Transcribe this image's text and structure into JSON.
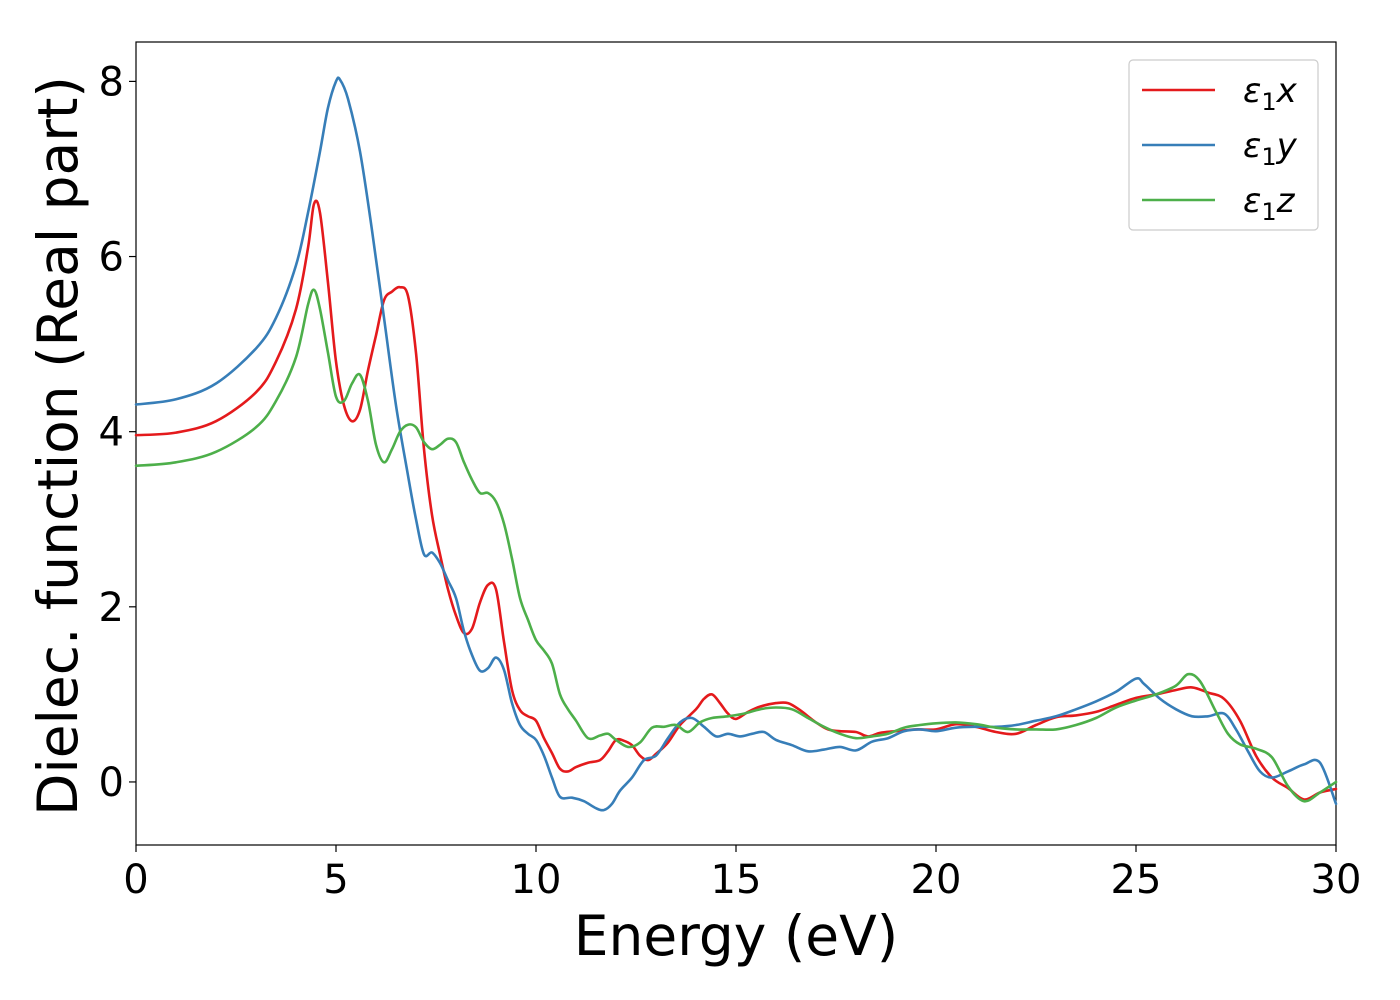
{
  "chart_data": {
    "type": "line",
    "xlabel": "Energy (eV)",
    "ylabel": "Dielec. function (Real part)",
    "xlim": [
      0,
      30
    ],
    "ylim": [
      -0.72,
      8.45
    ],
    "xticks": [
      0,
      5,
      10,
      15,
      20,
      25,
      30
    ],
    "yticks": [
      0,
      2,
      4,
      6,
      8
    ],
    "grid": false,
    "legend_position": "top-right",
    "series": [
      {
        "name": "ε₁x",
        "legend_main": "ε",
        "legend_sub": "1",
        "legend_tail": "x",
        "color": "#e41a1c",
        "points": [
          [
            0,
            3.96
          ],
          [
            1,
            3.99
          ],
          [
            2,
            4.12
          ],
          [
            3,
            4.45
          ],
          [
            3.5,
            4.8
          ],
          [
            4,
            5.4
          ],
          [
            4.3,
            6.1
          ],
          [
            4.45,
            6.6
          ],
          [
            4.6,
            6.5
          ],
          [
            4.8,
            5.7
          ],
          [
            5,
            4.8
          ],
          [
            5.2,
            4.3
          ],
          [
            5.4,
            4.12
          ],
          [
            5.6,
            4.25
          ],
          [
            5.8,
            4.7
          ],
          [
            6,
            5.1
          ],
          [
            6.2,
            5.5
          ],
          [
            6.4,
            5.6
          ],
          [
            6.6,
            5.65
          ],
          [
            6.8,
            5.55
          ],
          [
            7,
            4.9
          ],
          [
            7.2,
            3.8
          ],
          [
            7.4,
            3.05
          ],
          [
            7.6,
            2.6
          ],
          [
            7.8,
            2.2
          ],
          [
            8,
            1.9
          ],
          [
            8.2,
            1.7
          ],
          [
            8.4,
            1.75
          ],
          [
            8.6,
            2.05
          ],
          [
            8.8,
            2.25
          ],
          [
            9,
            2.2
          ],
          [
            9.2,
            1.6
          ],
          [
            9.4,
            1.05
          ],
          [
            9.6,
            0.82
          ],
          [
            9.8,
            0.75
          ],
          [
            10,
            0.7
          ],
          [
            10.2,
            0.5
          ],
          [
            10.4,
            0.33
          ],
          [
            10.6,
            0.15
          ],
          [
            10.8,
            0.12
          ],
          [
            11,
            0.17
          ],
          [
            11.3,
            0.22
          ],
          [
            11.6,
            0.25
          ],
          [
            11.8,
            0.35
          ],
          [
            12,
            0.48
          ],
          [
            12.2,
            0.47
          ],
          [
            12.4,
            0.42
          ],
          [
            12.6,
            0.3
          ],
          [
            12.8,
            0.25
          ],
          [
            13,
            0.32
          ],
          [
            13.3,
            0.45
          ],
          [
            13.6,
            0.65
          ],
          [
            14,
            0.83
          ],
          [
            14.2,
            0.95
          ],
          [
            14.4,
            1.0
          ],
          [
            14.6,
            0.9
          ],
          [
            14.8,
            0.78
          ],
          [
            15,
            0.72
          ],
          [
            15.3,
            0.8
          ],
          [
            15.6,
            0.86
          ],
          [
            16,
            0.9
          ],
          [
            16.3,
            0.9
          ],
          [
            16.6,
            0.82
          ],
          [
            17,
            0.68
          ],
          [
            17.3,
            0.6
          ],
          [
            17.6,
            0.58
          ],
          [
            18,
            0.57
          ],
          [
            18.3,
            0.52
          ],
          [
            18.6,
            0.56
          ],
          [
            19,
            0.58
          ],
          [
            19.5,
            0.6
          ],
          [
            20,
            0.6
          ],
          [
            20.5,
            0.66
          ],
          [
            21,
            0.63
          ],
          [
            21.5,
            0.57
          ],
          [
            22,
            0.55
          ],
          [
            22.5,
            0.65
          ],
          [
            23,
            0.74
          ],
          [
            23.5,
            0.76
          ],
          [
            24,
            0.8
          ],
          [
            24.5,
            0.88
          ],
          [
            25,
            0.96
          ],
          [
            25.5,
            1.0
          ],
          [
            26,
            1.05
          ],
          [
            26.4,
            1.08
          ],
          [
            26.8,
            1.02
          ],
          [
            27.2,
            0.95
          ],
          [
            27.6,
            0.7
          ],
          [
            28,
            0.3
          ],
          [
            28.4,
            0.05
          ],
          [
            28.8,
            -0.07
          ],
          [
            29.2,
            -0.2
          ],
          [
            29.6,
            -0.12
          ],
          [
            30,
            -0.08
          ]
        ]
      },
      {
        "name": "ε₁y",
        "legend_main": "ε",
        "legend_sub": "1",
        "legend_tail": "y",
        "color": "#377eb8",
        "points": [
          [
            0,
            4.31
          ],
          [
            1,
            4.37
          ],
          [
            2,
            4.55
          ],
          [
            3,
            4.95
          ],
          [
            3.5,
            5.3
          ],
          [
            4,
            5.9
          ],
          [
            4.3,
            6.5
          ],
          [
            4.6,
            7.2
          ],
          [
            4.8,
            7.7
          ],
          [
            5,
            8.0
          ],
          [
            5.1,
            8.02
          ],
          [
            5.3,
            7.8
          ],
          [
            5.6,
            7.2
          ],
          [
            5.9,
            6.3
          ],
          [
            6.2,
            5.3
          ],
          [
            6.5,
            4.3
          ],
          [
            6.8,
            3.5
          ],
          [
            7,
            3.0
          ],
          [
            7.2,
            2.6
          ],
          [
            7.4,
            2.62
          ],
          [
            7.6,
            2.5
          ],
          [
            7.8,
            2.3
          ],
          [
            8,
            2.1
          ],
          [
            8.2,
            1.72
          ],
          [
            8.4,
            1.45
          ],
          [
            8.6,
            1.27
          ],
          [
            8.8,
            1.3
          ],
          [
            9,
            1.42
          ],
          [
            9.2,
            1.28
          ],
          [
            9.4,
            0.9
          ],
          [
            9.6,
            0.65
          ],
          [
            9.8,
            0.55
          ],
          [
            10,
            0.48
          ],
          [
            10.2,
            0.3
          ],
          [
            10.4,
            0.05
          ],
          [
            10.6,
            -0.17
          ],
          [
            10.9,
            -0.18
          ],
          [
            11.2,
            -0.22
          ],
          [
            11.5,
            -0.3
          ],
          [
            11.7,
            -0.32
          ],
          [
            11.9,
            -0.25
          ],
          [
            12.1,
            -0.1
          ],
          [
            12.4,
            0.05
          ],
          [
            12.7,
            0.25
          ],
          [
            13,
            0.3
          ],
          [
            13.3,
            0.5
          ],
          [
            13.6,
            0.68
          ],
          [
            13.9,
            0.73
          ],
          [
            14.2,
            0.63
          ],
          [
            14.5,
            0.52
          ],
          [
            14.8,
            0.55
          ],
          [
            15.1,
            0.52
          ],
          [
            15.4,
            0.55
          ],
          [
            15.7,
            0.57
          ],
          [
            16,
            0.48
          ],
          [
            16.4,
            0.42
          ],
          [
            16.8,
            0.35
          ],
          [
            17.2,
            0.37
          ],
          [
            17.6,
            0.4
          ],
          [
            18,
            0.36
          ],
          [
            18.4,
            0.46
          ],
          [
            18.8,
            0.5
          ],
          [
            19.2,
            0.58
          ],
          [
            19.6,
            0.6
          ],
          [
            20,
            0.58
          ],
          [
            20.5,
            0.62
          ],
          [
            21,
            0.63
          ],
          [
            21.5,
            0.63
          ],
          [
            22,
            0.65
          ],
          [
            22.5,
            0.7
          ],
          [
            23,
            0.75
          ],
          [
            23.5,
            0.83
          ],
          [
            24,
            0.92
          ],
          [
            24.5,
            1.03
          ],
          [
            25,
            1.18
          ],
          [
            25.2,
            1.12
          ],
          [
            25.6,
            0.95
          ],
          [
            26,
            0.83
          ],
          [
            26.4,
            0.75
          ],
          [
            26.8,
            0.75
          ],
          [
            27.2,
            0.78
          ],
          [
            27.5,
            0.6
          ],
          [
            27.8,
            0.35
          ],
          [
            28.1,
            0.12
          ],
          [
            28.4,
            0.05
          ],
          [
            28.8,
            0.12
          ],
          [
            29.2,
            0.2
          ],
          [
            29.6,
            0.22
          ],
          [
            30,
            -0.25
          ]
        ]
      },
      {
        "name": "ε₁z",
        "legend_main": "ε",
        "legend_sub": "1",
        "legend_tail": "z",
        "color": "#4daf4a",
        "points": [
          [
            0,
            3.61
          ],
          [
            1,
            3.65
          ],
          [
            2,
            3.77
          ],
          [
            3,
            4.05
          ],
          [
            3.5,
            4.35
          ],
          [
            4,
            4.85
          ],
          [
            4.3,
            5.45
          ],
          [
            4.45,
            5.62
          ],
          [
            4.6,
            5.4
          ],
          [
            4.8,
            4.9
          ],
          [
            5,
            4.4
          ],
          [
            5.2,
            4.35
          ],
          [
            5.4,
            4.55
          ],
          [
            5.6,
            4.65
          ],
          [
            5.8,
            4.35
          ],
          [
            6,
            3.85
          ],
          [
            6.2,
            3.65
          ],
          [
            6.4,
            3.8
          ],
          [
            6.6,
            4.0
          ],
          [
            6.8,
            4.08
          ],
          [
            7,
            4.05
          ],
          [
            7.2,
            3.88
          ],
          [
            7.4,
            3.8
          ],
          [
            7.6,
            3.85
          ],
          [
            7.8,
            3.92
          ],
          [
            8,
            3.88
          ],
          [
            8.2,
            3.65
          ],
          [
            8.4,
            3.45
          ],
          [
            8.6,
            3.3
          ],
          [
            8.8,
            3.3
          ],
          [
            9,
            3.2
          ],
          [
            9.2,
            2.95
          ],
          [
            9.4,
            2.55
          ],
          [
            9.6,
            2.1
          ],
          [
            9.8,
            1.85
          ],
          [
            10,
            1.62
          ],
          [
            10.2,
            1.5
          ],
          [
            10.4,
            1.35
          ],
          [
            10.6,
            1.0
          ],
          [
            10.8,
            0.83
          ],
          [
            11,
            0.7
          ],
          [
            11.3,
            0.5
          ],
          [
            11.6,
            0.53
          ],
          [
            11.8,
            0.55
          ],
          [
            12,
            0.48
          ],
          [
            12.3,
            0.4
          ],
          [
            12.6,
            0.45
          ],
          [
            12.9,
            0.62
          ],
          [
            13.2,
            0.63
          ],
          [
            13.5,
            0.65
          ],
          [
            13.8,
            0.57
          ],
          [
            14.1,
            0.68
          ],
          [
            14.4,
            0.73
          ],
          [
            14.8,
            0.75
          ],
          [
            15.2,
            0.78
          ],
          [
            15.6,
            0.83
          ],
          [
            16,
            0.85
          ],
          [
            16.4,
            0.83
          ],
          [
            16.8,
            0.73
          ],
          [
            17.2,
            0.63
          ],
          [
            17.6,
            0.55
          ],
          [
            18,
            0.5
          ],
          [
            18.4,
            0.52
          ],
          [
            18.8,
            0.55
          ],
          [
            19.2,
            0.62
          ],
          [
            19.6,
            0.65
          ],
          [
            20,
            0.67
          ],
          [
            20.5,
            0.68
          ],
          [
            21,
            0.66
          ],
          [
            21.5,
            0.62
          ],
          [
            22,
            0.6
          ],
          [
            22.5,
            0.6
          ],
          [
            23,
            0.6
          ],
          [
            23.5,
            0.65
          ],
          [
            24,
            0.73
          ],
          [
            24.5,
            0.85
          ],
          [
            25,
            0.93
          ],
          [
            25.5,
            1.0
          ],
          [
            26,
            1.1
          ],
          [
            26.3,
            1.23
          ],
          [
            26.6,
            1.15
          ],
          [
            27,
            0.8
          ],
          [
            27.3,
            0.55
          ],
          [
            27.6,
            0.43
          ],
          [
            28,
            0.38
          ],
          [
            28.4,
            0.28
          ],
          [
            28.8,
            -0.05
          ],
          [
            29.2,
            -0.22
          ],
          [
            29.6,
            -0.12
          ],
          [
            30,
            0.0
          ]
        ]
      }
    ]
  }
}
